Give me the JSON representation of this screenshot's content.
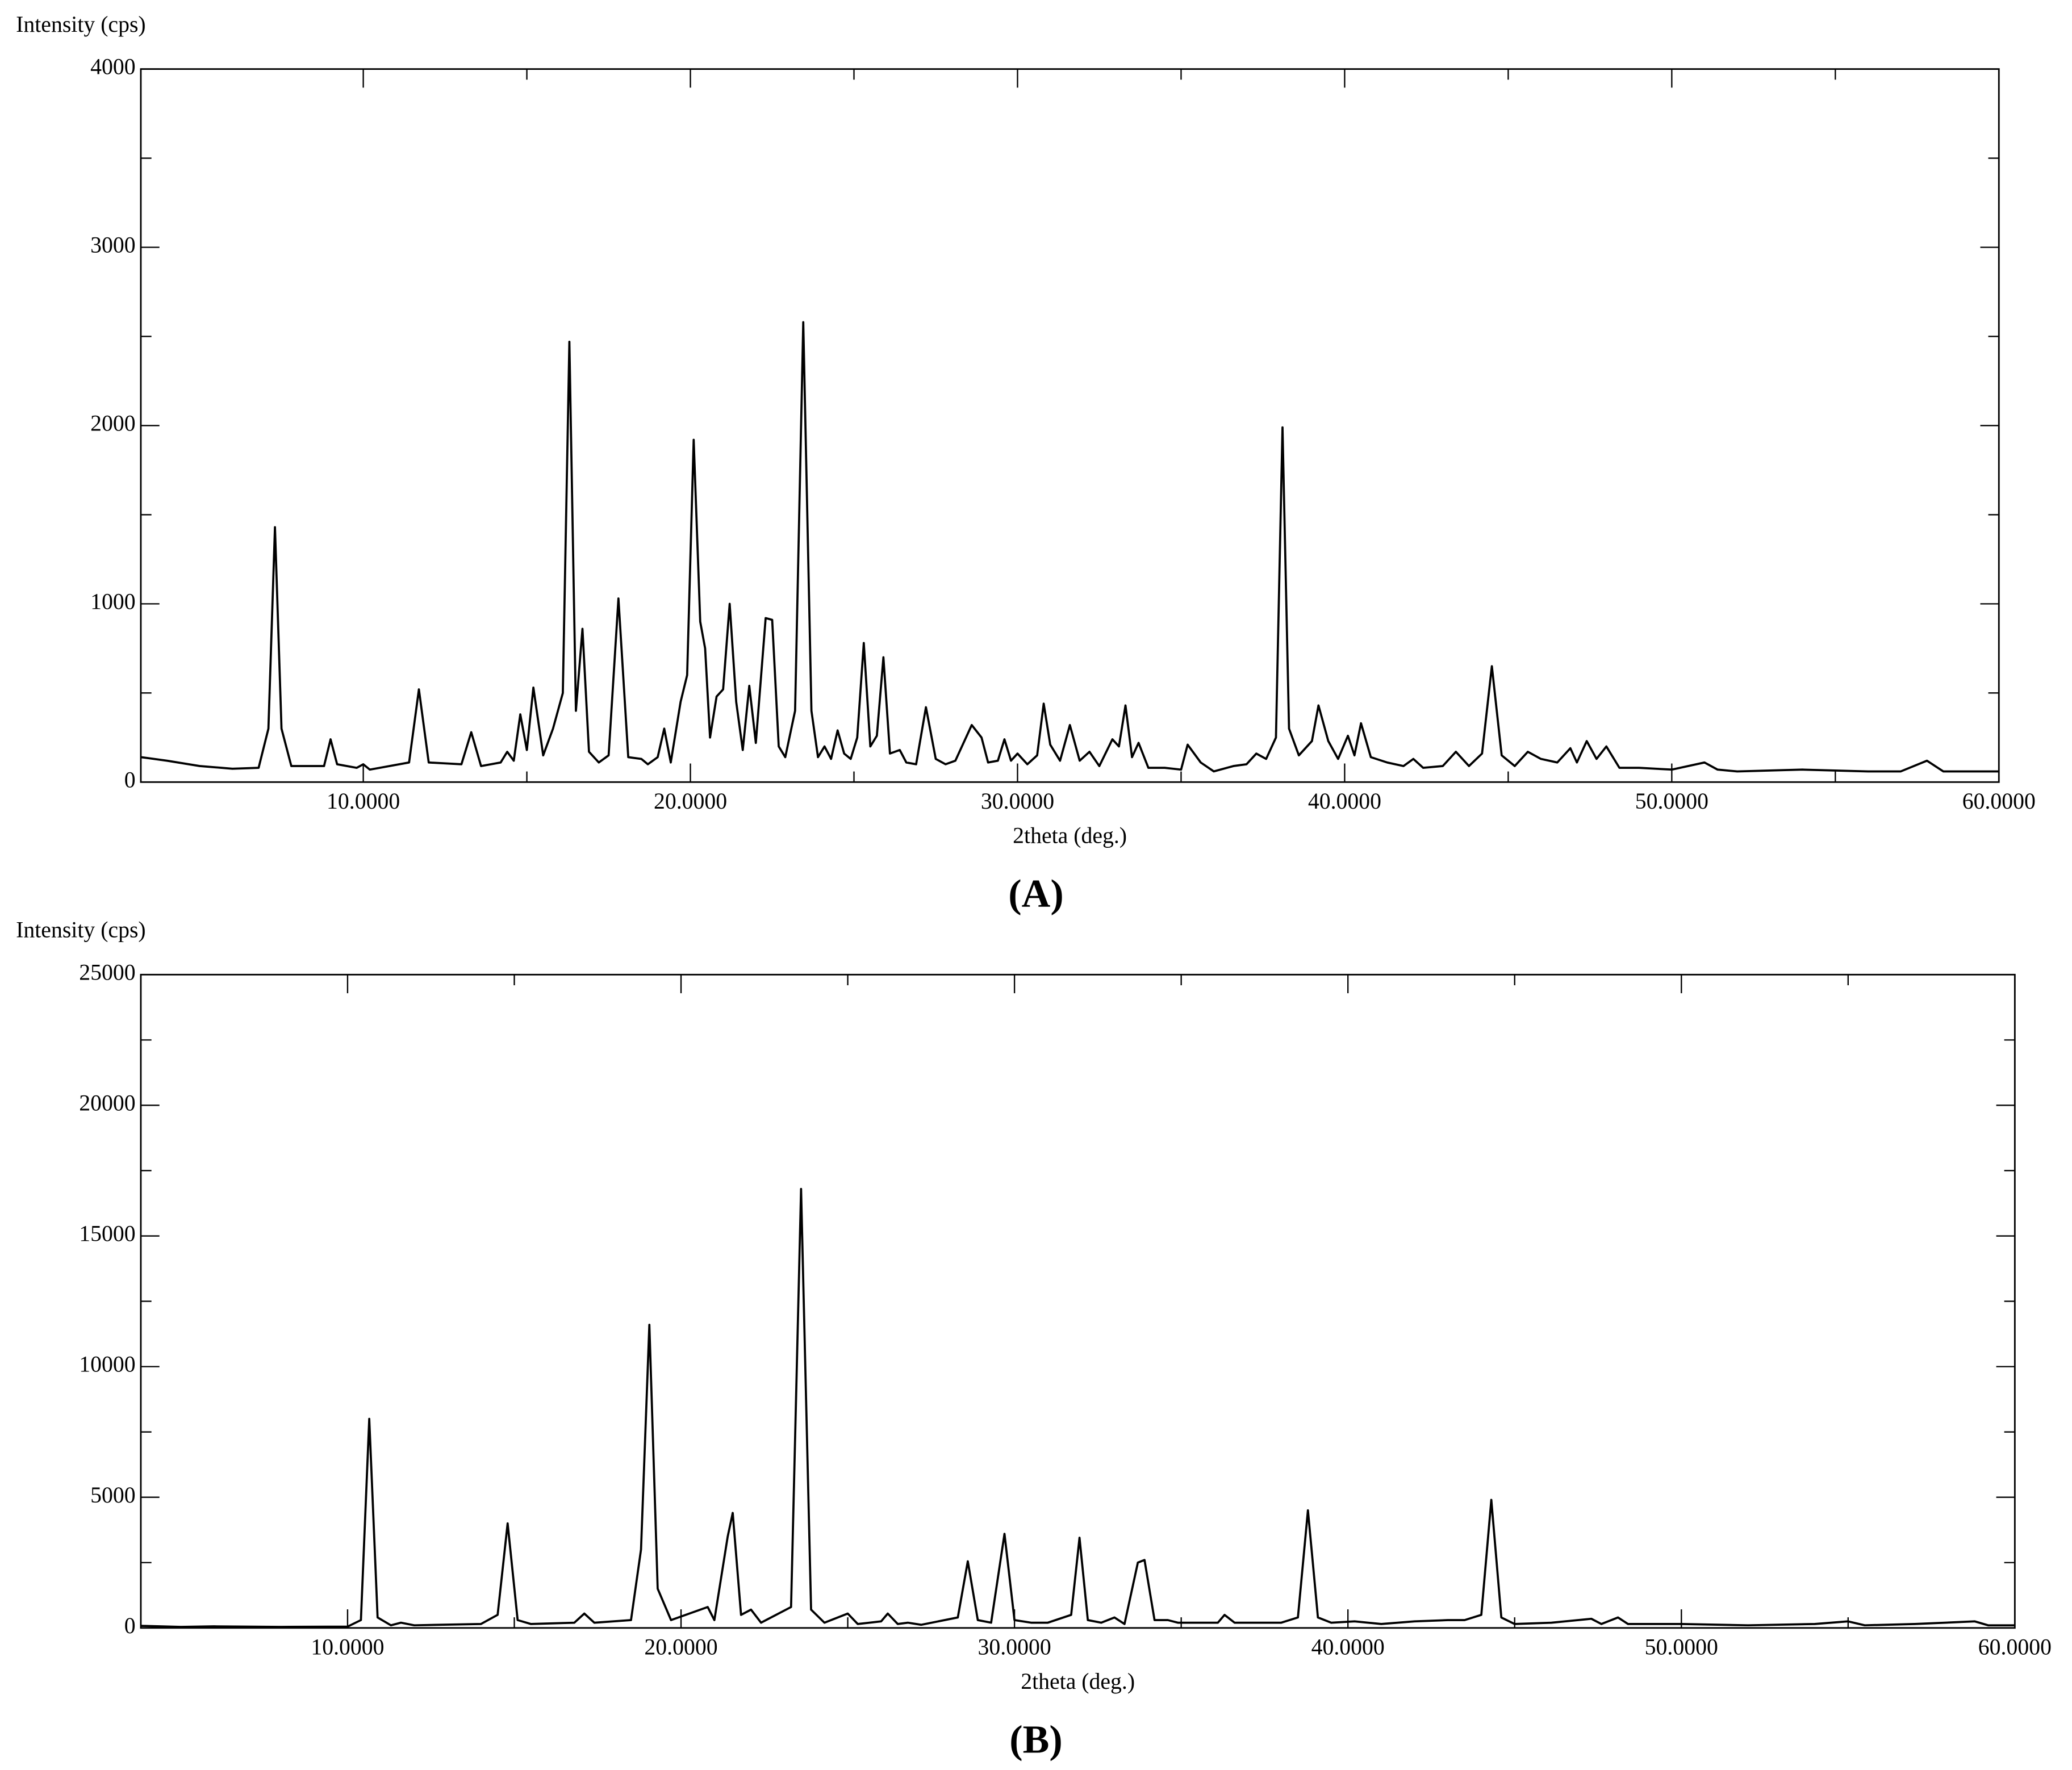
{
  "chart_data": [
    {
      "type": "line",
      "y_label": "Intensity (cps)",
      "x_label": "2theta (deg.)",
      "caption": "(A)",
      "color": "#000000",
      "xlim": [
        3.2,
        60
      ],
      "ylim": [
        0,
        4000
      ],
      "xticks": [
        {
          "value": 10,
          "label": "10.0000"
        },
        {
          "value": 20,
          "label": "20.0000"
        },
        {
          "value": 30,
          "label": "30.0000"
        },
        {
          "value": 40,
          "label": "40.0000"
        },
        {
          "value": 50,
          "label": "50.0000"
        },
        {
          "value": 60,
          "label": "60.0000"
        }
      ],
      "yticks": [
        0,
        1000,
        2000,
        3000,
        4000
      ],
      "x": [
        3.2,
        4,
        5,
        6,
        6.8,
        7.1,
        7.3,
        7.5,
        7.8,
        8.8,
        9.0,
        9.2,
        9.8,
        10.0,
        10.2,
        11.4,
        11.7,
        12.0,
        13.0,
        13.3,
        13.6,
        14.2,
        14.4,
        14.6,
        14.8,
        15.0,
        15.2,
        15.5,
        15.8,
        16.1,
        16.3,
        16.5,
        16.7,
        16.9,
        17.2,
        17.5,
        17.8,
        18.1,
        18.5,
        18.7,
        19.0,
        19.2,
        19.4,
        19.7,
        19.9,
        20.1,
        20.3,
        20.45,
        20.6,
        20.8,
        21.0,
        21.2,
        21.4,
        21.6,
        21.8,
        22.0,
        22.3,
        22.5,
        22.7,
        22.9,
        23.2,
        23.45,
        23.7,
        23.9,
        24.1,
        24.3,
        24.5,
        24.7,
        24.9,
        25.1,
        25.3,
        25.5,
        25.7,
        25.9,
        26.1,
        26.4,
        26.6,
        26.9,
        27.2,
        27.5,
        27.8,
        28.1,
        28.6,
        28.9,
        29.1,
        29.4,
        29.6,
        29.8,
        30.0,
        30.3,
        30.6,
        30.8,
        31.0,
        31.3,
        31.6,
        31.9,
        32.2,
        32.5,
        32.9,
        33.1,
        33.3,
        33.5,
        33.7,
        34.0,
        34.5,
        35.0,
        35.2,
        35.6,
        36.0,
        36.6,
        37.0,
        37.3,
        37.6,
        37.9,
        38.1,
        38.3,
        38.6,
        39.0,
        39.2,
        39.5,
        39.8,
        40.1,
        40.3,
        40.5,
        40.8,
        41.3,
        41.8,
        42.1,
        42.4,
        43.0,
        43.4,
        43.8,
        44.2,
        44.5,
        44.8,
        45.2,
        45.6,
        46.0,
        46.5,
        46.9,
        47.1,
        47.4,
        47.7,
        48.0,
        48.4,
        49.0,
        50,
        51.0,
        51.4,
        52,
        54,
        56,
        57,
        57.8,
        58.3,
        60
      ],
      "values": [
        140,
        120,
        90,
        75,
        80,
        300,
        1430,
        300,
        90,
        90,
        240,
        100,
        80,
        100,
        70,
        110,
        520,
        110,
        100,
        280,
        90,
        110,
        170,
        120,
        380,
        180,
        530,
        150,
        300,
        500,
        2470,
        400,
        860,
        170,
        110,
        150,
        1030,
        140,
        130,
        100,
        140,
        300,
        110,
        450,
        600,
        1920,
        900,
        750,
        250,
        480,
        520,
        1000,
        450,
        180,
        540,
        220,
        920,
        910,
        200,
        140,
        400,
        2580,
        400,
        140,
        200,
        130,
        290,
        160,
        130,
        250,
        780,
        200,
        260,
        700,
        160,
        180,
        110,
        100,
        420,
        130,
        100,
        120,
        320,
        250,
        110,
        120,
        240,
        120,
        160,
        100,
        150,
        440,
        210,
        120,
        320,
        120,
        170,
        90,
        240,
        200,
        430,
        140,
        220,
        80,
        80,
        70,
        210,
        110,
        60,
        90,
        100,
        160,
        130,
        250,
        1990,
        300,
        150,
        230,
        430,
        230,
        130,
        260,
        150,
        330,
        140,
        110,
        90,
        130,
        80,
        90,
        170,
        90,
        160,
        650,
        150,
        90,
        170,
        130,
        110,
        190,
        110,
        230,
        130,
        200,
        80,
        80,
        70,
        110,
        70,
        60,
        70,
        60,
        60,
        120,
        60,
        60
      ]
    },
    {
      "type": "line",
      "y_label": "Intensity (cps)",
      "x_label": "2theta (deg.)",
      "caption": "(B)",
      "color": "#000000",
      "xlim": [
        3.8,
        60
      ],
      "ylim": [
        0,
        25000
      ],
      "xticks": [
        {
          "value": 10,
          "label": "10.0000"
        },
        {
          "value": 20,
          "label": "20.0000"
        },
        {
          "value": 30,
          "label": "30.0000"
        },
        {
          "value": 40,
          "label": "40.0000"
        },
        {
          "value": 50,
          "label": "50.0000"
        },
        {
          "value": 60,
          "label": "60.0000"
        }
      ],
      "yticks": [
        0,
        5000,
        10000,
        15000,
        20000,
        25000
      ],
      "x": [
        3.8,
        5,
        6,
        8,
        10.0,
        10.4,
        10.65,
        10.9,
        11.3,
        11.6,
        12,
        14,
        14.5,
        14.8,
        15.1,
        15.5,
        16.8,
        17.1,
        17.4,
        18.5,
        18.8,
        19.05,
        19.3,
        19.7,
        20.8,
        21.0,
        21.4,
        21.55,
        21.8,
        22.1,
        22.4,
        23.3,
        23.6,
        23.9,
        24.3,
        25.0,
        25.3,
        26.0,
        26.2,
        26.5,
        26.8,
        27.2,
        28.3,
        28.6,
        28.9,
        29.3,
        29.7,
        30.0,
        30.5,
        31.0,
        31.7,
        31.95,
        32.2,
        32.6,
        33.0,
        33.3,
        33.7,
        33.9,
        34.2,
        34.6,
        34.9,
        36.1,
        36.3,
        36.6,
        38.0,
        38.5,
        38.8,
        39.1,
        39.5,
        40.2,
        41,
        42,
        43,
        43.5,
        44.0,
        44.3,
        44.6,
        45,
        46.1,
        47.3,
        47.6,
        48.1,
        48.4,
        50,
        52,
        54,
        55,
        55.5,
        57,
        58.8,
        59.2,
        60
      ],
      "values": [
        80,
        40,
        60,
        40,
        50,
        300,
        8000,
        400,
        100,
        200,
        100,
        150,
        500,
        4000,
        300,
        150,
        200,
        550,
        200,
        300,
        3000,
        11600,
        1500,
        300,
        800,
        300,
        3500,
        4400,
        500,
        700,
        200,
        800,
        16800,
        700,
        200,
        550,
        150,
        250,
        550,
        150,
        200,
        120,
        400,
        2550,
        300,
        200,
        3600,
        300,
        200,
        200,
        500,
        3450,
        300,
        200,
        400,
        150,
        2500,
        2600,
        300,
        300,
        200,
        200,
        500,
        200,
        200,
        400,
        4500,
        400,
        200,
        250,
        150,
        250,
        300,
        300,
        500,
        4900,
        400,
        150,
        200,
        350,
        150,
        400,
        150,
        150,
        100,
        150,
        250,
        100,
        150,
        250,
        100,
        100
      ]
    }
  ]
}
